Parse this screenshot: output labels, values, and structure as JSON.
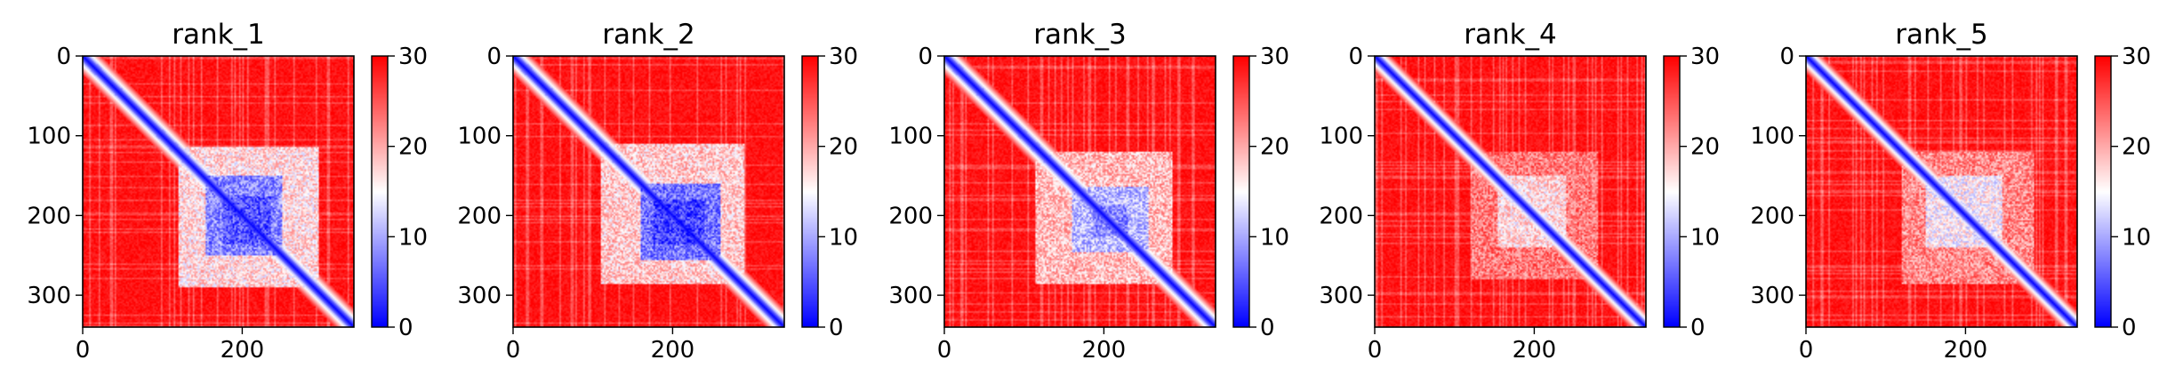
{
  "chart_data": [
    {
      "type": "heatmap",
      "title": "rank_1",
      "extent": [
        0,
        340,
        340,
        0
      ],
      "xticks": [
        0,
        200
      ],
      "yticks": [
        0,
        100,
        200,
        300
      ],
      "colorbar": {
        "range": [
          0,
          30
        ],
        "ticks": [
          0,
          10,
          20,
          30
        ],
        "colormap": "bwr"
      },
      "diagonal_width": 8,
      "blocks": [
        {
          "x": [
            120,
            295
          ],
          "y": [
            115,
            290
          ],
          "value": 17
        },
        {
          "x": [
            155,
            250
          ],
          "y": [
            150,
            250
          ],
          "value": 8
        },
        {
          "x": [
            175,
            235
          ],
          "y": [
            175,
            235
          ],
          "value": 5
        }
      ],
      "background_value": 29
    },
    {
      "type": "heatmap",
      "title": "rank_2",
      "extent": [
        0,
        340,
        340,
        0
      ],
      "xticks": [
        0,
        200
      ],
      "yticks": [
        0,
        100,
        200,
        300
      ],
      "colorbar": {
        "range": [
          0,
          30
        ],
        "ticks": [
          0,
          10,
          20,
          30
        ],
        "colormap": "bwr"
      },
      "diagonal_width": 8,
      "blocks": [
        {
          "x": [
            110,
            290
          ],
          "y": [
            110,
            285
          ],
          "value": 18
        },
        {
          "x": [
            160,
            260
          ],
          "y": [
            160,
            255
          ],
          "value": 7
        },
        {
          "x": [
            175,
            240
          ],
          "y": [
            180,
            235
          ],
          "value": 4
        }
      ],
      "background_value": 29
    },
    {
      "type": "heatmap",
      "title": "rank_3",
      "extent": [
        0,
        340,
        340,
        0
      ],
      "xticks": [
        0,
        200
      ],
      "yticks": [
        0,
        100,
        200,
        300
      ],
      "colorbar": {
        "range": [
          0,
          30
        ],
        "ticks": [
          0,
          10,
          20,
          30
        ],
        "colormap": "bwr"
      },
      "diagonal_width": 8,
      "blocks": [
        {
          "x": [
            115,
            285
          ],
          "y": [
            120,
            285
          ],
          "value": 19
        },
        {
          "x": [
            160,
            255
          ],
          "y": [
            165,
            245
          ],
          "value": 11
        },
        {
          "x": [
            185,
            230
          ],
          "y": [
            185,
            225
          ],
          "value": 8
        }
      ],
      "background_value": 29
    },
    {
      "type": "heatmap",
      "title": "rank_4",
      "extent": [
        0,
        340,
        340,
        0
      ],
      "xticks": [
        0,
        200
      ],
      "yticks": [
        0,
        100,
        200,
        300
      ],
      "colorbar": {
        "range": [
          0,
          30
        ],
        "ticks": [
          0,
          10,
          20,
          30
        ],
        "colormap": "bwr"
      },
      "diagonal_width": 7,
      "blocks": [
        {
          "x": [
            120,
            280
          ],
          "y": [
            120,
            280
          ],
          "value": 23
        },
        {
          "x": [
            155,
            240
          ],
          "y": [
            150,
            240
          ],
          "value": 17
        }
      ],
      "background_value": 29
    },
    {
      "type": "heatmap",
      "title": "rank_5",
      "extent": [
        0,
        340,
        340,
        0
      ],
      "xticks": [
        0,
        200
      ],
      "yticks": [
        0,
        100,
        200,
        300
      ],
      "colorbar": {
        "range": [
          0,
          30
        ],
        "ticks": [
          0,
          10,
          20,
          30
        ],
        "colormap": "bwr"
      },
      "diagonal_width": 7,
      "blocks": [
        {
          "x": [
            120,
            285
          ],
          "y": [
            120,
            285
          ],
          "value": 22
        },
        {
          "x": [
            150,
            245
          ],
          "y": [
            150,
            240
          ],
          "value": 15
        }
      ],
      "background_value": 29
    }
  ]
}
